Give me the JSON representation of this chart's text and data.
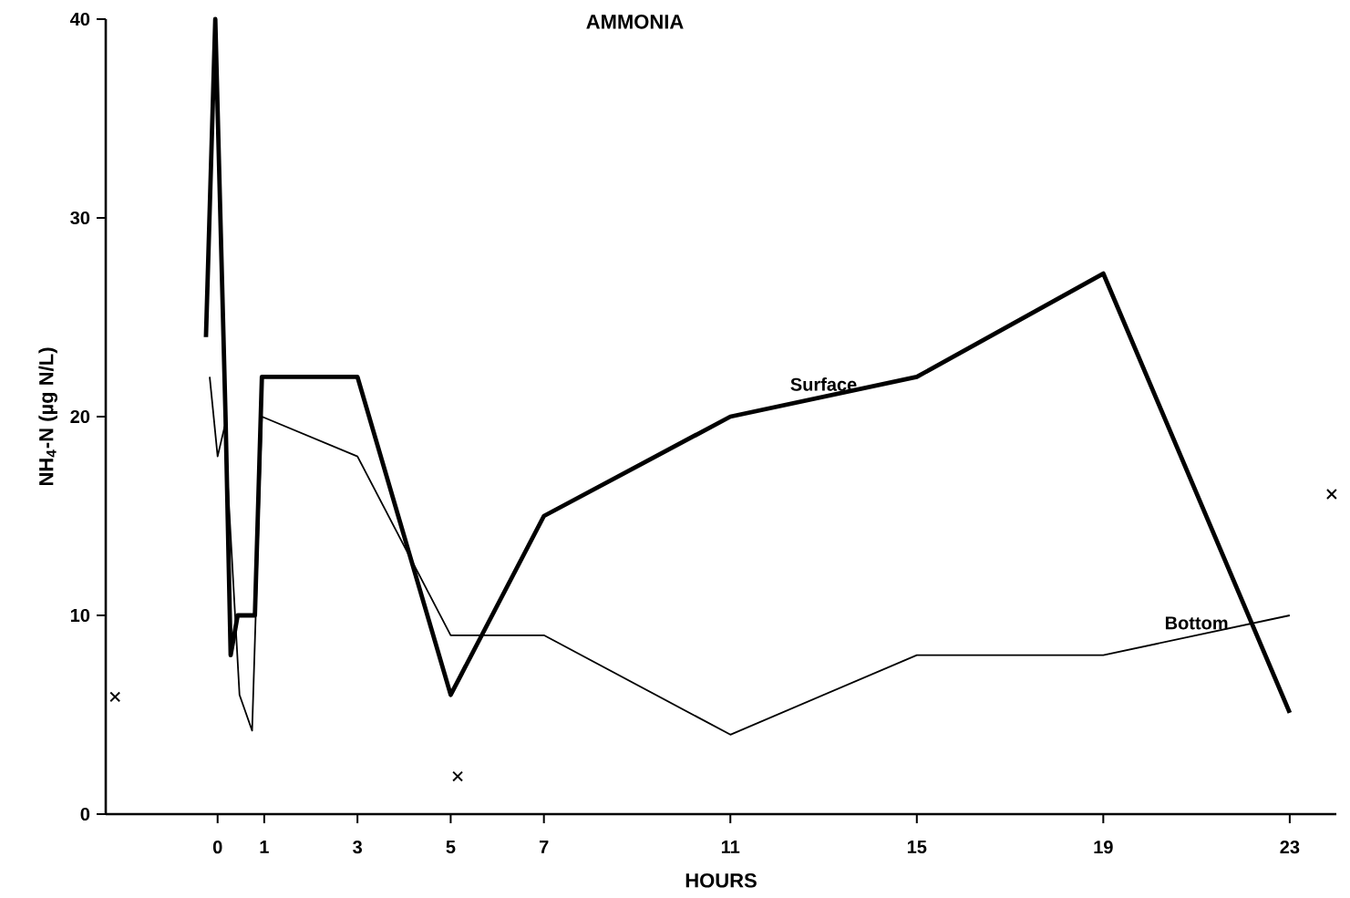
{
  "chart_data": {
    "type": "line",
    "title": "AMMONIA",
    "xlabel": "HOURS",
    "ylabel": "NH$_{4}$-N (µg N/L)",
    "xlim": [
      -2.4,
      24
    ],
    "ylim": [
      0,
      40
    ],
    "xticks": [
      0,
      1,
      3,
      5,
      7,
      11,
      15,
      19,
      23
    ],
    "yticks": [
      0,
      10,
      20,
      30,
      40
    ],
    "grid": false,
    "legend": false,
    "line_style": "solid",
    "marker": "none",
    "series": [
      {
        "name": "Surface",
        "color": "#000000",
        "x": [
          -0.25,
          -0.05,
          0.17,
          0.28,
          0.43,
          0.8,
          0.95,
          3,
          5,
          7,
          11,
          15,
          19,
          23
        ],
        "values": [
          24,
          40,
          20,
          8,
          10,
          10,
          22,
          22,
          6,
          15,
          20,
          22,
          27.2,
          5.1
        ]
      },
      {
        "name": "Bottom",
        "color": "#000000",
        "x": [
          -0.17,
          0,
          0.15,
          0.47,
          0.74,
          0.95,
          3,
          5,
          7,
          11,
          15,
          19,
          23
        ],
        "values": [
          22,
          18,
          19.5,
          6,
          4.2,
          20,
          18,
          9,
          9,
          4,
          8,
          8,
          10
        ]
      },
      {
        "type": "scatter",
        "marker": "cross",
        "color": "#000000",
        "x": [
          -2.2,
          5.15,
          23.9
        ],
        "values": [
          5.9,
          1.9,
          16.1
        ]
      }
    ]
  }
}
